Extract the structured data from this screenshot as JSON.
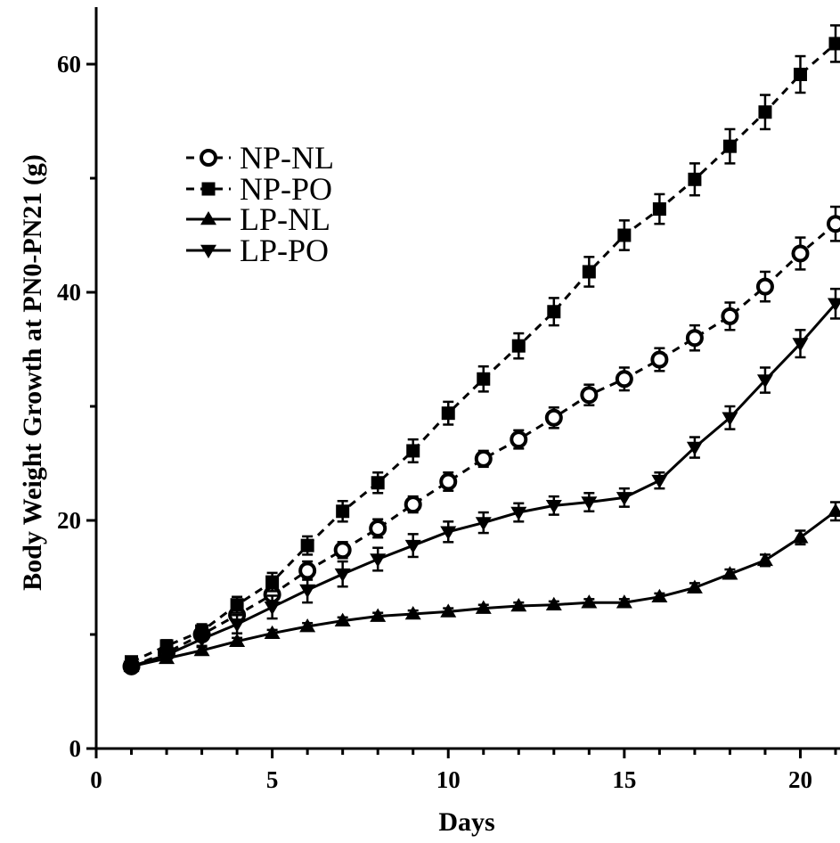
{
  "chart_data": {
    "type": "line",
    "xlabel": "Days",
    "ylabel": "Body Weight Growth at PN0-PN21 (g)",
    "xlim": [
      0,
      21
    ],
    "ylim": [
      0,
      65
    ],
    "x_ticks": [
      0,
      5,
      10,
      15,
      20
    ],
    "y_ticks": [
      0,
      20,
      40,
      60
    ],
    "grid": false,
    "legend_position": "upper-left",
    "x": [
      1,
      2,
      3,
      4,
      5,
      6,
      7,
      8,
      9,
      10,
      11,
      12,
      13,
      14,
      15,
      16,
      17,
      18,
      19,
      20,
      21
    ],
    "series": [
      {
        "name": "NP-NL",
        "marker": "open-circle",
        "line_style": "dashed",
        "values": [
          7.2,
          8.4,
          10.0,
          11.7,
          13.5,
          15.6,
          17.4,
          19.3,
          21.4,
          23.4,
          25.4,
          27.1,
          29.0,
          31.0,
          32.4,
          34.1,
          36.0,
          37.9,
          40.5,
          43.4,
          46.0
        ],
        "errors": [
          0.3,
          0.4,
          0.5,
          0.6,
          0.7,
          0.8,
          0.7,
          0.8,
          0.7,
          0.8,
          0.7,
          0.8,
          0.9,
          0.9,
          1.0,
          1.0,
          1.1,
          1.2,
          1.3,
          1.4,
          1.5
        ]
      },
      {
        "name": "NP-PO",
        "marker": "filled-square",
        "line_style": "dashed",
        "values": [
          7.6,
          9.0,
          10.3,
          12.6,
          14.6,
          17.8,
          20.8,
          23.3,
          26.1,
          29.4,
          32.4,
          35.3,
          38.3,
          41.8,
          45.0,
          47.3,
          49.9,
          52.8,
          55.8,
          59.1,
          61.8
        ],
        "errors": [
          0.4,
          0.5,
          0.6,
          0.7,
          0.8,
          0.8,
          0.9,
          0.9,
          1.0,
          1.0,
          1.1,
          1.1,
          1.2,
          1.3,
          1.3,
          1.3,
          1.4,
          1.5,
          1.5,
          1.6,
          1.6
        ]
      },
      {
        "name": "LP-NL",
        "marker": "filled-triangle-up",
        "line_style": "solid",
        "values": [
          7.2,
          7.9,
          8.6,
          9.4,
          10.1,
          10.7,
          11.2,
          11.6,
          11.8,
          12.0,
          12.3,
          12.5,
          12.6,
          12.8,
          12.8,
          13.3,
          14.1,
          15.3,
          16.5,
          18.5,
          20.8
        ],
        "errors": [
          0.3,
          0.3,
          0.3,
          0.3,
          0.3,
          0.3,
          0.3,
          0.3,
          0.3,
          0.3,
          0.3,
          0.3,
          0.3,
          0.3,
          0.3,
          0.3,
          0.4,
          0.4,
          0.5,
          0.6,
          0.8
        ]
      },
      {
        "name": "LP-PO",
        "marker": "filled-triangle-down",
        "line_style": "solid",
        "values": [
          7.2,
          8.2,
          9.6,
          10.9,
          12.4,
          13.9,
          15.3,
          16.6,
          17.8,
          19.0,
          19.8,
          20.7,
          21.3,
          21.6,
          22.0,
          23.5,
          26.4,
          29.0,
          32.3,
          35.5,
          39.0
        ],
        "errors": [
          0.3,
          0.4,
          0.6,
          0.8,
          1.0,
          1.1,
          1.1,
          1.0,
          1.0,
          0.9,
          0.9,
          0.8,
          0.8,
          0.8,
          0.8,
          0.7,
          0.9,
          1.0,
          1.1,
          1.2,
          1.3
        ]
      }
    ]
  }
}
